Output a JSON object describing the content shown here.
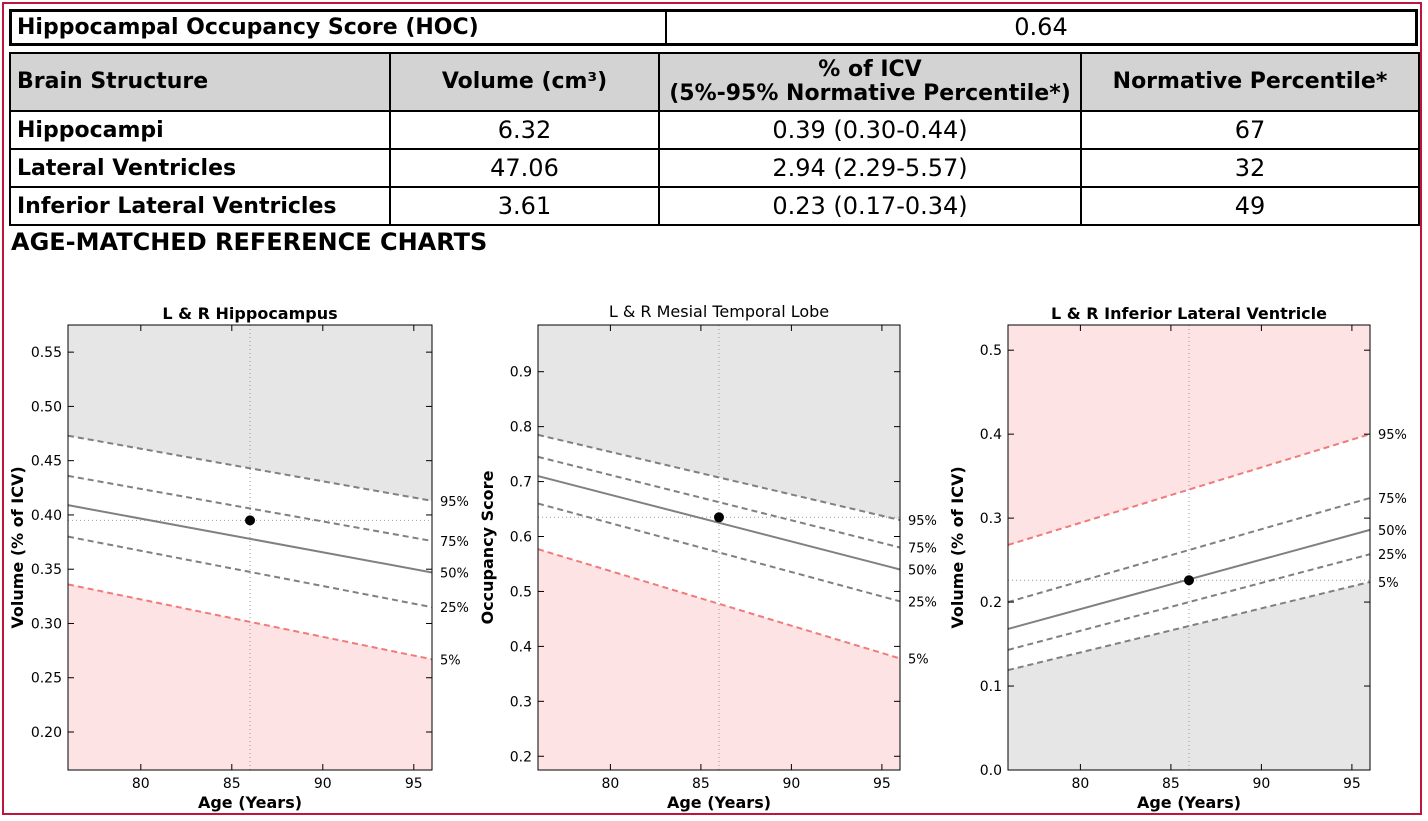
{
  "hoc": {
    "label": "Hippocampal Occupancy Score (HOC)",
    "value": "0.64"
  },
  "table": {
    "headers": [
      "Brain Structure",
      "Volume (cm³)",
      "% of ICV",
      "(5%-95% Normative Percentile*)",
      "Normative Percentile*"
    ],
    "rows": [
      [
        "Hippocampi",
        "6.32",
        "0.39 (0.30-0.44)",
        "67"
      ],
      [
        "Lateral Ventricles",
        "47.06",
        "2.94 (2.29-5.57)",
        "32"
      ],
      [
        "Inferior Lateral Ventricles",
        "3.61",
        "0.23 (0.17-0.34)",
        "49"
      ]
    ]
  },
  "section_title": "AGE-MATCHED REFERENCE CHARTS",
  "colors": {
    "border": "#c0143c",
    "pink": "#fde3e3",
    "gray": "#e6e6e6",
    "red_line": "#ef7b7b",
    "line": "#808080"
  },
  "chart_data": [
    {
      "type": "line",
      "title": "L & R Hippocampus",
      "xlabel": "Age (Years)",
      "ylabel": "Volume (% of ICV)",
      "xlim": [
        76,
        96
      ],
      "ylim": [
        0.165,
        0.575
      ],
      "xticks": [
        80,
        85,
        90,
        95
      ],
      "yticks": [
        0.2,
        0.25,
        0.3,
        0.35,
        0.4,
        0.45,
        0.5,
        0.55
      ],
      "ytick_labels": [
        "0.20",
        "0.25",
        "0.30",
        "0.35",
        "0.40",
        "0.45",
        "0.50",
        "0.55"
      ],
      "shade_above": "gray",
      "shade_below": "pink",
      "series": [
        {
          "name": "95%",
          "x": [
            76,
            96
          ],
          "y": [
            0.473,
            0.413
          ]
        },
        {
          "name": "75%",
          "x": [
            76,
            96
          ],
          "y": [
            0.436,
            0.376
          ]
        },
        {
          "name": "50%",
          "x": [
            76,
            96
          ],
          "y": [
            0.409,
            0.347
          ]
        },
        {
          "name": "25%",
          "x": [
            76,
            96
          ],
          "y": [
            0.38,
            0.315
          ]
        },
        {
          "name": "5%",
          "x": [
            76,
            96
          ],
          "y": [
            0.336,
            0.267
          ]
        }
      ],
      "point": {
        "x": 86,
        "y": 0.395
      }
    },
    {
      "type": "line",
      "title": "L & R Mesial Temporal Lobe",
      "xlabel": "Age (Years)",
      "ylabel": "Occupancy Score",
      "xlim": [
        76,
        96
      ],
      "ylim": [
        0.175,
        0.985
      ],
      "xticks": [
        80,
        85,
        90,
        95
      ],
      "yticks": [
        0.2,
        0.3,
        0.4,
        0.5,
        0.6,
        0.7,
        0.8,
        0.9
      ],
      "ytick_labels": [
        "0.2",
        "0.3",
        "0.4",
        "0.5",
        "0.6",
        "0.7",
        "0.8",
        "0.9"
      ],
      "shade_above": "gray",
      "shade_below": "pink",
      "series": [
        {
          "name": "95%",
          "x": [
            76,
            96
          ],
          "y": [
            0.785,
            0.63
          ]
        },
        {
          "name": "75%",
          "x": [
            76,
            96
          ],
          "y": [
            0.745,
            0.58
          ]
        },
        {
          "name": "50%",
          "x": [
            76,
            96
          ],
          "y": [
            0.71,
            0.54
          ]
        },
        {
          "name": "25%",
          "x": [
            76,
            96
          ],
          "y": [
            0.66,
            0.482
          ]
        },
        {
          "name": "5%",
          "x": [
            76,
            96
          ],
          "y": [
            0.577,
            0.378
          ]
        }
      ],
      "point": {
        "x": 86,
        "y": 0.635
      }
    },
    {
      "type": "line",
      "title": "L & R Inferior Lateral Ventricle",
      "xlabel": "Age (Years)",
      "ylabel": "Volume (% of ICV)",
      "xlim": [
        76,
        96
      ],
      "ylim": [
        0.0,
        0.53
      ],
      "xticks": [
        80,
        85,
        90,
        95
      ],
      "yticks": [
        0.0,
        0.1,
        0.2,
        0.3,
        0.4,
        0.5
      ],
      "ytick_labels": [
        "0.0",
        "0.1",
        "0.2",
        "0.3",
        "0.4",
        "0.5"
      ],
      "shade_above": "pink",
      "shade_below": "gray",
      "series": [
        {
          "name": "95%",
          "x": [
            76,
            96
          ],
          "y": [
            0.268,
            0.4
          ]
        },
        {
          "name": "75%",
          "x": [
            76,
            96
          ],
          "y": [
            0.2,
            0.324
          ]
        },
        {
          "name": "50%",
          "x": [
            76,
            96
          ],
          "y": [
            0.168,
            0.286
          ]
        },
        {
          "name": "25%",
          "x": [
            76,
            96
          ],
          "y": [
            0.143,
            0.257
          ]
        },
        {
          "name": "5%",
          "x": [
            76,
            96
          ],
          "y": [
            0.119,
            0.224
          ]
        }
      ],
      "point": {
        "x": 86,
        "y": 0.226
      }
    }
  ]
}
